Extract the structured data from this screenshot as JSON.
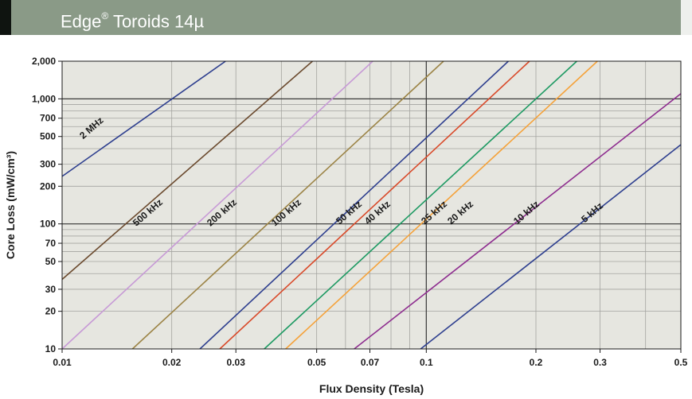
{
  "header": {
    "title_prefix": "Edge",
    "title_mark": "®",
    "title_suffix": " Toroids 14µ",
    "bar_color": "#8a9a87",
    "accent_color": "#0f1410"
  },
  "chart_data": {
    "type": "line",
    "title": "Edge® Toroids 14µ",
    "xlabel": "Flux Density (Tesla)",
    "ylabel": "Core Loss (mW/cm³)",
    "x_scale": "log",
    "y_scale": "log",
    "xlim": [
      0.01,
      0.5
    ],
    "ylim": [
      10,
      2000
    ],
    "x_ticks": [
      0.01,
      0.02,
      0.03,
      0.05,
      0.07,
      0.1,
      0.2,
      0.3,
      0.5
    ],
    "x_tick_labels": [
      "0.01",
      "0.02",
      "0.03",
      "0.05",
      "0.07",
      "0.1",
      "0.2",
      "0.3",
      "0.5"
    ],
    "y_ticks": [
      10,
      20,
      30,
      50,
      70,
      100,
      200,
      300,
      500,
      700,
      1000,
      2000
    ],
    "y_tick_labels": [
      "10",
      "20",
      "30",
      "50",
      "70",
      "100",
      "200",
      "300",
      "500",
      "700",
      "1,000",
      "2,000"
    ],
    "grid": true,
    "plot_background": "#e6e6e0",
    "series": [
      {
        "name": "2 MHz",
        "color": "#2e3f8f",
        "x": [
          0.01,
          0.0281
        ],
        "y": [
          240,
          2000
        ]
      },
      {
        "name": "500 kHz",
        "color": "#6b4a2e",
        "x": [
          0.01,
          0.0487
        ],
        "y": [
          36,
          2000
        ]
      },
      {
        "name": "200 kHz",
        "color": "#c79ad6",
        "x": [
          0.01,
          0.0713
        ],
        "y": [
          10,
          2000
        ]
      },
      {
        "name": "100 kHz",
        "color": "#9c8446",
        "x": [
          0.0156,
          0.1115
        ],
        "y": [
          10,
          2000
        ]
      },
      {
        "name": "50 kHz",
        "color": "#2e3f8f",
        "x": [
          0.0239,
          0.168
        ],
        "y": [
          10,
          2000
        ]
      },
      {
        "name": "40 kHz",
        "color": "#d94a2a",
        "x": [
          0.0271,
          0.192
        ],
        "y": [
          10,
          2000
        ]
      },
      {
        "name": "25 kHz",
        "color": "#1e9a63",
        "x": [
          0.0359,
          0.259
        ],
        "y": [
          10,
          2000
        ]
      },
      {
        "name": "20 kHz",
        "color": "#f5a23a",
        "x": [
          0.0411,
          0.295
        ],
        "y": [
          10,
          2000
        ]
      },
      {
        "name": "10 kHz",
        "color": "#8e2d8f",
        "x": [
          0.0634,
          0.5
        ],
        "y": [
          10,
          1100
        ]
      },
      {
        "name": "5 kHz",
        "color": "#2e3f8f",
        "x": [
          0.0965,
          0.5
        ],
        "y": [
          10,
          430
        ]
      }
    ],
    "annotations": [
      {
        "text": "2 MHz",
        "x": 0.0122,
        "y": 560
      },
      {
        "text": "500 kHz",
        "x": 0.0174,
        "y": 118
      },
      {
        "text": "200 kHz",
        "x": 0.0278,
        "y": 118
      },
      {
        "text": "100 kHz",
        "x": 0.0418,
        "y": 118
      },
      {
        "text": "50 kHz",
        "x": 0.0621,
        "y": 118
      },
      {
        "text": "40 kHz",
        "x": 0.0744,
        "y": 118
      },
      {
        "text": "25 kHz",
        "x": 0.1064,
        "y": 118
      },
      {
        "text": "20 kHz",
        "x": 0.1257,
        "y": 118
      },
      {
        "text": "10 kHz",
        "x": 0.1908,
        "y": 118
      },
      {
        "text": "5 kHz",
        "x": 0.2891,
        "y": 118
      }
    ]
  }
}
